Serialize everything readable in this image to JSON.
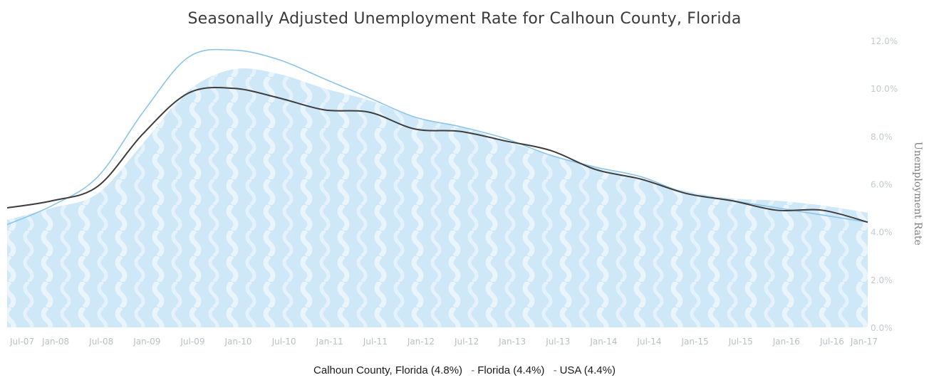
{
  "chart_data": {
    "type": "area",
    "title": "Seasonally Adjusted Unemployment Rate for Calhoun County, Florida",
    "ylabel": "Unemployment Rate",
    "ylim": [
      0,
      12
    ],
    "yticks": [
      "0.0%",
      "2.0%",
      "4.0%",
      "6.0%",
      "8.0%",
      "10.0%",
      "12.0%"
    ],
    "x_tick_labels": [
      "Jul-07",
      "Jan-08",
      "Jul-08",
      "Jan-09",
      "Jul-09",
      "Jan-10",
      "Jul-10",
      "Jan-11",
      "Jul-11",
      "Jan-12",
      "Jul-12",
      "Jan-13",
      "Jul-13",
      "Jan-14",
      "Jul-14",
      "Jan-15",
      "Jul-15",
      "Jan-16",
      "Jul-16",
      "Jan-17"
    ],
    "x": [
      "Jul-07",
      "Jan-08",
      "Jul-08",
      "Jan-09",
      "Jul-09",
      "Jan-10",
      "Jul-10",
      "Jan-11",
      "Jul-11",
      "Jan-12",
      "Jul-12",
      "Jan-13",
      "Jul-13",
      "Jan-14",
      "Jul-14",
      "Jan-15",
      "Jul-15",
      "Jan-16",
      "Jul-16",
      "Jan-17"
    ],
    "series": [
      {
        "name": "Calhoun County, Florida (4.8%)",
        "color": "#cfe8f7",
        "values": [
          4.5,
          5.0,
          5.6,
          7.7,
          9.9,
          10.8,
          10.6,
          10.0,
          9.5,
          8.8,
          8.4,
          7.8,
          7.2,
          6.7,
          6.2,
          5.7,
          5.4,
          5.3,
          5.1,
          4.8
        ]
      },
      {
        "name": "Florida (4.4%)",
        "color": "#8cc4e8",
        "values": [
          4.3,
          5.1,
          6.3,
          9.0,
          11.3,
          11.6,
          11.2,
          10.4,
          9.6,
          8.8,
          8.4,
          7.9,
          7.2,
          6.7,
          6.3,
          5.6,
          5.3,
          5.0,
          4.7,
          4.4
        ]
      },
      {
        "name": "USA (4.4%)",
        "color": "#3d3d3d",
        "values": [
          5.0,
          5.3,
          5.9,
          8.1,
          9.8,
          10.0,
          9.6,
          9.1,
          9.0,
          8.3,
          8.2,
          7.8,
          7.4,
          6.6,
          6.2,
          5.6,
          5.3,
          4.9,
          4.9,
          4.4
        ]
      }
    ]
  },
  "legend": {
    "county": "Calhoun County, Florida (4.8%)",
    "dash": "-",
    "florida": "Florida (4.4%)",
    "usa": "USA (4.4%)"
  }
}
